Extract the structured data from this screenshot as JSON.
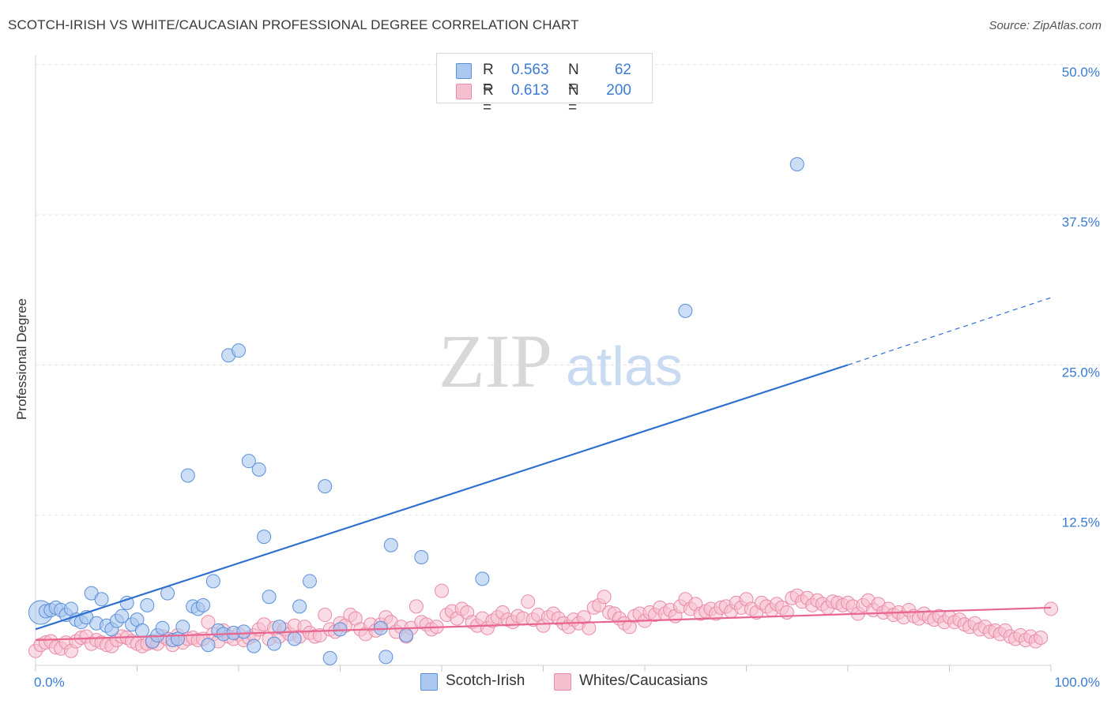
{
  "header": {
    "title": "SCOTCH-IRISH VS WHITE/CAUCASIAN PROFESSIONAL DEGREE CORRELATION CHART",
    "source": "Source: ZipAtlas.com"
  },
  "watermark": {
    "zip": "ZIP",
    "atlas": "atlas"
  },
  "legend": {
    "rows": [
      {
        "r_label": "R =",
        "r_value": "0.563",
        "n_label": "N =",
        "n_value": "62"
      },
      {
        "r_label": "R =",
        "r_value": "0.613",
        "n_label": "N =",
        "n_value": "200"
      }
    ]
  },
  "bottom_legend": {
    "series1": "Scotch-Irish",
    "series2": "Whites/Caucasians"
  },
  "colors": {
    "blue_fill": "#aac8f0",
    "blue_stroke": "#5a8fd8",
    "blue_line": "#2f6fd0",
    "pink_fill": "#f6bfd0",
    "pink_stroke": "#e98aa8",
    "pink_line": "#e8658f",
    "tick_label": "#3a7bd5",
    "grid": "#e3e3e3"
  },
  "chart_data": {
    "type": "scatter",
    "title": "SCOTCH-IRISH VS WHITE/CAUCASIAN PROFESSIONAL DEGREE CORRELATION CHART",
    "xlabel": "",
    "ylabel": "Professional Degree",
    "xlim": [
      0,
      100
    ],
    "ylim": [
      0,
      52
    ],
    "x_tick_labels": [
      "0.0%",
      "100.0%"
    ],
    "y_ticks": [
      12.5,
      25,
      37.5,
      50
    ],
    "y_tick_labels": [
      "12.5%",
      "25.0%",
      "37.5%",
      "50.0%"
    ],
    "grid": "horizontal dashed",
    "legend_position": "top-center",
    "series": [
      {
        "name": "Scotch-Irish",
        "r": 0.563,
        "n": 62,
        "trend": {
          "x0": 0,
          "y0": 3.0,
          "x1": 80,
          "y1": 25.0,
          "dashed_to_x": 100,
          "dashed_to_y": 30.6
        },
        "points": [
          [
            0.5,
            4.4
          ],
          [
            1.0,
            4.5
          ],
          [
            1.5,
            4.6
          ],
          [
            2.0,
            4.8
          ],
          [
            2.5,
            4.6
          ],
          [
            3.0,
            4.2
          ],
          [
            3.5,
            4.7
          ],
          [
            4.0,
            3.8
          ],
          [
            4.5,
            3.6
          ],
          [
            5.0,
            4.0
          ],
          [
            5.5,
            6.0
          ],
          [
            6.0,
            3.5
          ],
          [
            6.5,
            5.5
          ],
          [
            7.0,
            3.3
          ],
          [
            7.5,
            3.0
          ],
          [
            8.0,
            3.7
          ],
          [
            8.5,
            4.1
          ],
          [
            9.0,
            5.2
          ],
          [
            9.5,
            3.4
          ],
          [
            10.0,
            3.8
          ],
          [
            10.5,
            2.9
          ],
          [
            11.0,
            5.0
          ],
          [
            11.5,
            2.0
          ],
          [
            12.0,
            2.5
          ],
          [
            12.5,
            3.1
          ],
          [
            13.0,
            6.0
          ],
          [
            13.5,
            2.1
          ],
          [
            14.0,
            2.2
          ],
          [
            14.5,
            3.2
          ],
          [
            15.0,
            15.8
          ],
          [
            15.5,
            4.9
          ],
          [
            16.0,
            4.7
          ],
          [
            16.5,
            5.0
          ],
          [
            17.0,
            1.7
          ],
          [
            17.5,
            7.0
          ],
          [
            18.0,
            2.9
          ],
          [
            18.5,
            2.6
          ],
          [
            19.0,
            25.8
          ],
          [
            19.5,
            2.7
          ],
          [
            20.0,
            26.2
          ],
          [
            20.5,
            2.8
          ],
          [
            21.0,
            17.0
          ],
          [
            21.5,
            1.6
          ],
          [
            22.0,
            16.3
          ],
          [
            22.5,
            10.7
          ],
          [
            23.0,
            5.7
          ],
          [
            23.5,
            1.8
          ],
          [
            24.0,
            3.2
          ],
          [
            25.5,
            2.2
          ],
          [
            26.0,
            4.9
          ],
          [
            27.0,
            7.0
          ],
          [
            28.5,
            14.9
          ],
          [
            29.0,
            0.6
          ],
          [
            30.0,
            3.0
          ],
          [
            34.0,
            3.1
          ],
          [
            34.5,
            0.7
          ],
          [
            35.0,
            10.0
          ],
          [
            36.5,
            2.5
          ],
          [
            38.0,
            9.0
          ],
          [
            44.0,
            7.2
          ],
          [
            64.0,
            29.5
          ],
          [
            75.0,
            41.7
          ]
        ]
      },
      {
        "name": "Whites/Caucasians",
        "r": 0.613,
        "n": 200,
        "trend": {
          "x0": 0,
          "y0": 2.1,
          "x1": 100,
          "y1": 4.8
        },
        "points": [
          [
            0.0,
            1.2
          ],
          [
            0.5,
            1.7
          ],
          [
            1.0,
            1.9
          ],
          [
            1.5,
            2.0
          ],
          [
            2.0,
            1.5
          ],
          [
            2.5,
            1.4
          ],
          [
            3.0,
            1.9
          ],
          [
            3.5,
            1.2
          ],
          [
            4.0,
            2.0
          ],
          [
            4.5,
            2.3
          ],
          [
            5.0,
            2.4
          ],
          [
            5.5,
            1.8
          ],
          [
            6.0,
            2.1
          ],
          [
            6.5,
            1.9
          ],
          [
            7.0,
            1.7
          ],
          [
            7.5,
            1.6
          ],
          [
            8.0,
            2.1
          ],
          [
            8.5,
            2.4
          ],
          [
            9.0,
            2.3
          ],
          [
            9.5,
            2.0
          ],
          [
            10.0,
            1.8
          ],
          [
            10.5,
            1.6
          ],
          [
            11.0,
            1.8
          ],
          [
            11.5,
            1.9
          ],
          [
            12.0,
            1.8
          ],
          [
            12.5,
            2.4
          ],
          [
            13.0,
            2.2
          ],
          [
            13.5,
            1.7
          ],
          [
            14.0,
            2.5
          ],
          [
            14.5,
            1.9
          ],
          [
            15.0,
            2.2
          ],
          [
            15.5,
            2.3
          ],
          [
            16.0,
            2.1
          ],
          [
            16.5,
            2.2
          ],
          [
            17.0,
            3.6
          ],
          [
            17.5,
            2.6
          ],
          [
            18.0,
            2.0
          ],
          [
            18.5,
            2.9
          ],
          [
            19.0,
            2.4
          ],
          [
            19.5,
            2.2
          ],
          [
            20.0,
            2.6
          ],
          [
            20.5,
            2.1
          ],
          [
            21.0,
            2.3
          ],
          [
            21.5,
            2.5
          ],
          [
            22.0,
            3.0
          ],
          [
            22.5,
            3.4
          ],
          [
            23.0,
            2.2
          ],
          [
            23.5,
            3.1
          ],
          [
            24.0,
            2.4
          ],
          [
            24.5,
            3.0
          ],
          [
            25.0,
            2.6
          ],
          [
            25.5,
            3.3
          ],
          [
            26.0,
            2.4
          ],
          [
            26.5,
            3.2
          ],
          [
            27.0,
            2.7
          ],
          [
            27.5,
            2.4
          ],
          [
            28.0,
            2.5
          ],
          [
            28.5,
            4.2
          ],
          [
            29.0,
            3.0
          ],
          [
            29.5,
            2.8
          ],
          [
            30.0,
            3.5
          ],
          [
            30.5,
            3.3
          ],
          [
            31.0,
            4.2
          ],
          [
            31.5,
            3.9
          ],
          [
            32.0,
            3.0
          ],
          [
            32.5,
            2.6
          ],
          [
            33.0,
            3.4
          ],
          [
            33.5,
            2.9
          ],
          [
            34.0,
            3.4
          ],
          [
            34.5,
            4.0
          ],
          [
            35.0,
            3.6
          ],
          [
            35.5,
            2.8
          ],
          [
            36.0,
            3.2
          ],
          [
            36.5,
            2.4
          ],
          [
            37.0,
            3.1
          ],
          [
            37.5,
            4.9
          ],
          [
            38.0,
            3.6
          ],
          [
            38.5,
            3.4
          ],
          [
            39.0,
            3.0
          ],
          [
            39.5,
            3.2
          ],
          [
            40.0,
            6.2
          ],
          [
            40.5,
            4.2
          ],
          [
            41.0,
            4.5
          ],
          [
            41.5,
            3.9
          ],
          [
            42.0,
            4.7
          ],
          [
            42.5,
            4.4
          ],
          [
            43.0,
            3.6
          ],
          [
            43.5,
            3.3
          ],
          [
            44.0,
            3.9
          ],
          [
            44.5,
            3.1
          ],
          [
            45.0,
            3.7
          ],
          [
            45.5,
            4.0
          ],
          [
            46.0,
            4.4
          ],
          [
            46.5,
            3.8
          ],
          [
            47.0,
            3.6
          ],
          [
            47.5,
            4.1
          ],
          [
            48.0,
            3.9
          ],
          [
            48.5,
            5.3
          ],
          [
            49.0,
            3.8
          ],
          [
            49.5,
            4.2
          ],
          [
            50.0,
            3.3
          ],
          [
            50.5,
            4.0
          ],
          [
            51.0,
            4.3
          ],
          [
            51.5,
            3.9
          ],
          [
            52.0,
            3.5
          ],
          [
            52.5,
            3.2
          ],
          [
            53.0,
            3.8
          ],
          [
            53.5,
            3.5
          ],
          [
            54.0,
            4.0
          ],
          [
            54.5,
            3.1
          ],
          [
            55.0,
            4.8
          ],
          [
            55.5,
            5.0
          ],
          [
            56.0,
            5.7
          ],
          [
            56.5,
            4.4
          ],
          [
            57.0,
            4.3
          ],
          [
            57.5,
            3.9
          ],
          [
            58.0,
            3.5
          ],
          [
            58.5,
            3.2
          ],
          [
            59.0,
            4.1
          ],
          [
            59.5,
            4.3
          ],
          [
            60.0,
            3.7
          ],
          [
            60.5,
            4.4
          ],
          [
            61.0,
            4.2
          ],
          [
            61.5,
            4.8
          ],
          [
            62.0,
            4.3
          ],
          [
            62.5,
            4.6
          ],
          [
            63.0,
            4.1
          ],
          [
            63.5,
            4.9
          ],
          [
            64.0,
            5.5
          ],
          [
            64.5,
            4.7
          ],
          [
            65.0,
            5.1
          ],
          [
            65.5,
            4.3
          ],
          [
            66.0,
            4.5
          ],
          [
            66.5,
            4.7
          ],
          [
            67.0,
            4.3
          ],
          [
            67.5,
            4.8
          ],
          [
            68.0,
            4.9
          ],
          [
            68.5,
            4.5
          ],
          [
            69.0,
            5.2
          ],
          [
            69.5,
            4.8
          ],
          [
            70.0,
            5.5
          ],
          [
            70.5,
            4.7
          ],
          [
            71.0,
            4.4
          ],
          [
            71.5,
            5.2
          ],
          [
            72.0,
            4.9
          ],
          [
            72.5,
            4.6
          ],
          [
            73.0,
            5.1
          ],
          [
            73.5,
            4.8
          ],
          [
            74.0,
            4.4
          ],
          [
            74.5,
            5.6
          ],
          [
            75.0,
            5.8
          ],
          [
            75.5,
            5.3
          ],
          [
            76.0,
            5.6
          ],
          [
            76.5,
            5.0
          ],
          [
            77.0,
            5.4
          ],
          [
            77.5,
            5.1
          ],
          [
            78.0,
            4.8
          ],
          [
            78.5,
            5.3
          ],
          [
            79.0,
            5.2
          ],
          [
            79.5,
            5.0
          ],
          [
            80.0,
            5.2
          ],
          [
            80.5,
            4.9
          ],
          [
            81.0,
            4.3
          ],
          [
            81.5,
            5.0
          ],
          [
            82.0,
            5.4
          ],
          [
            82.5,
            4.6
          ],
          [
            83.0,
            5.1
          ],
          [
            83.5,
            4.4
          ],
          [
            84.0,
            4.7
          ],
          [
            84.5,
            4.2
          ],
          [
            85.0,
            4.4
          ],
          [
            85.5,
            4.0
          ],
          [
            86.0,
            4.6
          ],
          [
            86.5,
            4.1
          ],
          [
            87.0,
            3.9
          ],
          [
            87.5,
            4.3
          ],
          [
            88.0,
            4.0
          ],
          [
            88.5,
            3.8
          ],
          [
            89.0,
            4.1
          ],
          [
            89.5,
            3.6
          ],
          [
            90.0,
            4.0
          ],
          [
            90.5,
            3.6
          ],
          [
            91.0,
            3.8
          ],
          [
            91.5,
            3.4
          ],
          [
            92.0,
            3.2
          ],
          [
            92.5,
            3.5
          ],
          [
            93.0,
            3.0
          ],
          [
            93.5,
            3.2
          ],
          [
            94.0,
            2.8
          ],
          [
            94.5,
            2.9
          ],
          [
            95.0,
            2.6
          ],
          [
            95.5,
            2.9
          ],
          [
            96.0,
            2.4
          ],
          [
            96.5,
            2.2
          ],
          [
            97.0,
            2.5
          ],
          [
            97.5,
            2.1
          ],
          [
            98.0,
            2.4
          ],
          [
            98.5,
            2.0
          ],
          [
            99.0,
            2.3
          ],
          [
            100.0,
            4.7
          ]
        ]
      }
    ]
  }
}
